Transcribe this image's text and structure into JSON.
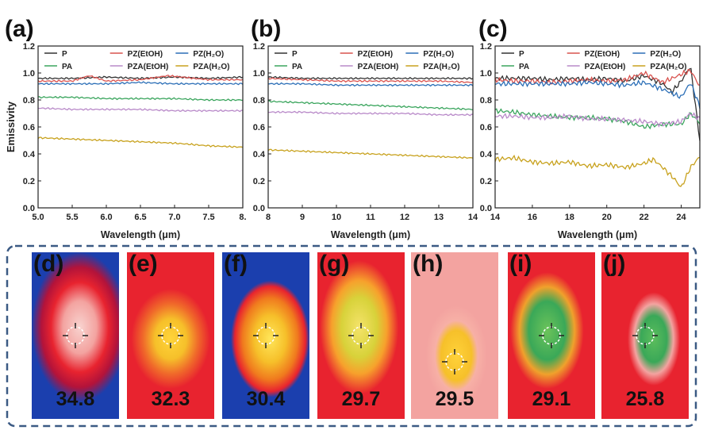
{
  "chart_data": [
    {
      "type": "line",
      "panel_label": "(a)",
      "xlabel": "Wavelength (μm)",
      "ylabel": "Emissivity",
      "xlim": [
        5.0,
        8.0
      ],
      "ylim": [
        0.0,
        1.2
      ],
      "xticks": [
        "5.0",
        "5.5",
        "6.0",
        "6.5",
        "7.0",
        "7.5",
        "8."
      ],
      "yticks": [
        "0.0",
        "0.2",
        "0.4",
        "0.6",
        "0.8",
        "1.0",
        "1.2"
      ],
      "legend_placement": "top",
      "series": [
        {
          "name": "P",
          "color": "#333333",
          "x": [
            5.0,
            5.5,
            6.0,
            6.5,
            7.0,
            7.5,
            8.0
          ],
          "values": [
            0.96,
            0.96,
            0.97,
            0.96,
            0.97,
            0.96,
            0.97
          ]
        },
        {
          "name": "PZ(EtOH)",
          "color": "#d9534f",
          "x": [
            5.0,
            5.5,
            5.75,
            6.0,
            6.5,
            6.9,
            7.5,
            8.0
          ],
          "values": [
            0.94,
            0.94,
            0.98,
            0.94,
            0.95,
            0.98,
            0.95,
            0.95
          ]
        },
        {
          "name": "PZ(H₂O)",
          "color": "#2c6fb7",
          "x": [
            5.0,
            5.5,
            6.0,
            6.5,
            7.0,
            7.5,
            8.0
          ],
          "values": [
            0.92,
            0.92,
            0.92,
            0.93,
            0.92,
            0.92,
            0.92
          ]
        },
        {
          "name": "PA",
          "color": "#3aa55d",
          "x": [
            5.0,
            5.5,
            6.0,
            6.5,
            7.0,
            7.5,
            8.0
          ],
          "values": [
            0.82,
            0.82,
            0.81,
            0.81,
            0.81,
            0.8,
            0.8
          ]
        },
        {
          "name": "PZA(EtOH)",
          "color": "#b98ac9",
          "x": [
            5.0,
            5.5,
            6.0,
            6.5,
            7.0,
            7.5,
            8.0
          ],
          "values": [
            0.74,
            0.73,
            0.73,
            0.73,
            0.72,
            0.72,
            0.72
          ]
        },
        {
          "name": "PZA(H₂O)",
          "color": "#c8a21e",
          "x": [
            5.0,
            5.5,
            6.0,
            6.5,
            7.0,
            7.5,
            8.0
          ],
          "values": [
            0.52,
            0.51,
            0.5,
            0.49,
            0.48,
            0.46,
            0.45
          ]
        }
      ]
    },
    {
      "type": "line",
      "panel_label": "(b)",
      "xlabel": "Wavelength (μm)",
      "ylabel": "",
      "xlim": [
        8,
        14
      ],
      "ylim": [
        0.0,
        1.2
      ],
      "xticks": [
        "8",
        "9",
        "10",
        "11",
        "12",
        "13",
        "14"
      ],
      "yticks": [
        "0.0",
        "0.2",
        "0.4",
        "0.6",
        "0.8",
        "1.0",
        "1.2"
      ],
      "legend_placement": "top",
      "series": [
        {
          "name": "P",
          "color": "#333333",
          "x": [
            8,
            9,
            10,
            11,
            12,
            13,
            14
          ],
          "values": [
            0.97,
            0.96,
            0.96,
            0.96,
            0.96,
            0.96,
            0.96
          ]
        },
        {
          "name": "PZ(EtOH)",
          "color": "#d9534f",
          "x": [
            8,
            9,
            10,
            11,
            12,
            13,
            14
          ],
          "values": [
            0.96,
            0.95,
            0.94,
            0.94,
            0.94,
            0.94,
            0.93
          ]
        },
        {
          "name": "PZ(H₂O)",
          "color": "#2c6fb7",
          "x": [
            8,
            9,
            10,
            11,
            12,
            13,
            14
          ],
          "values": [
            0.92,
            0.92,
            0.91,
            0.91,
            0.91,
            0.91,
            0.91
          ]
        },
        {
          "name": "PA",
          "color": "#3aa55d",
          "x": [
            8,
            9,
            10,
            11,
            12,
            13,
            14
          ],
          "values": [
            0.79,
            0.78,
            0.77,
            0.76,
            0.75,
            0.74,
            0.73
          ]
        },
        {
          "name": "PZA(EtOH)",
          "color": "#b98ac9",
          "x": [
            8,
            9,
            10,
            11,
            12,
            13,
            14
          ],
          "values": [
            0.71,
            0.71,
            0.7,
            0.7,
            0.7,
            0.69,
            0.69
          ]
        },
        {
          "name": "PZA(H₂O)",
          "color": "#c8a21e",
          "x": [
            8,
            9,
            10,
            11,
            12,
            13,
            14
          ],
          "values": [
            0.43,
            0.42,
            0.41,
            0.4,
            0.39,
            0.38,
            0.37
          ]
        }
      ]
    },
    {
      "type": "line",
      "panel_label": "(c)",
      "xlabel": "Wavelength (μm)",
      "ylabel": "",
      "xlim": [
        14,
        25
      ],
      "ylim": [
        0.0,
        1.2
      ],
      "xticks": [
        "14",
        "16",
        "18",
        "20",
        "22",
        "24"
      ],
      "yticks": [
        "0.0",
        "0.2",
        "0.4",
        "0.6",
        "0.8",
        "1.0",
        "1.2"
      ],
      "legend_placement": "top",
      "series": [
        {
          "name": "P",
          "color": "#333333",
          "x": [
            14,
            15,
            16,
            17,
            18,
            19,
            20,
            21,
            22,
            23,
            23.5,
            24,
            24.5,
            25
          ],
          "values": [
            0.96,
            0.96,
            0.96,
            0.95,
            0.96,
            0.95,
            0.96,
            0.94,
            0.98,
            0.92,
            0.86,
            0.94,
            1.05,
            0.5
          ]
        },
        {
          "name": "PZ(EtOH)",
          "color": "#d9534f",
          "x": [
            14,
            15,
            16,
            17,
            18,
            19,
            20,
            21,
            22,
            23,
            24,
            24.5,
            25
          ],
          "values": [
            0.95,
            0.94,
            0.94,
            0.93,
            0.94,
            0.95,
            0.94,
            0.95,
            1.0,
            0.93,
            0.99,
            1.02,
            0.9
          ]
        },
        {
          "name": "PZ(H₂O)",
          "color": "#2c6fb7",
          "x": [
            14,
            15,
            16,
            17,
            18,
            19,
            20,
            21,
            22,
            23,
            24,
            24.5,
            25
          ],
          "values": [
            0.92,
            0.92,
            0.92,
            0.92,
            0.92,
            0.93,
            0.92,
            0.91,
            0.93,
            0.88,
            0.82,
            0.93,
            0.75
          ]
        },
        {
          "name": "PA",
          "color": "#3aa55d",
          "x": [
            14,
            15,
            16,
            17,
            18,
            19,
            20,
            21,
            22,
            23,
            24,
            24.5,
            25
          ],
          "values": [
            0.72,
            0.71,
            0.69,
            0.68,
            0.67,
            0.67,
            0.66,
            0.64,
            0.6,
            0.62,
            0.62,
            0.7,
            0.63
          ]
        },
        {
          "name": "PZA(EtOH)",
          "color": "#b98ac9",
          "x": [
            14,
            15,
            16,
            17,
            18,
            19,
            20,
            21,
            22,
            23,
            24,
            24.5,
            25
          ],
          "values": [
            0.68,
            0.68,
            0.67,
            0.67,
            0.68,
            0.66,
            0.66,
            0.65,
            0.64,
            0.62,
            0.64,
            0.7,
            0.66
          ]
        },
        {
          "name": "PZA(H₂O)",
          "color": "#c8a21e",
          "x": [
            14,
            15,
            16,
            17,
            18,
            19,
            20,
            21,
            22,
            22.5,
            23,
            23.6,
            24,
            24.5,
            25
          ],
          "values": [
            0.36,
            0.37,
            0.34,
            0.33,
            0.34,
            0.31,
            0.32,
            0.3,
            0.33,
            0.36,
            0.3,
            0.22,
            0.15,
            0.3,
            0.38
          ]
        }
      ]
    }
  ],
  "thermal_panels": [
    {
      "label": "(d)",
      "temperature": "34.8"
    },
    {
      "label": "(e)",
      "temperature": "32.3"
    },
    {
      "label": "(f)",
      "temperature": "30.4"
    },
    {
      "label": "(g)",
      "temperature": "29.7"
    },
    {
      "label": "(h)",
      "temperature": "29.5"
    },
    {
      "label": "(i)",
      "temperature": "29.1"
    },
    {
      "label": "(j)",
      "temperature": "25.8"
    }
  ],
  "colors": {
    "dashed_frame": "#3b5a84",
    "thermal_hot": "#e8232f",
    "thermal_warm": "#f6c02a",
    "thermal_cool": "#3aa858",
    "thermal_cold": "#1b3fae"
  }
}
